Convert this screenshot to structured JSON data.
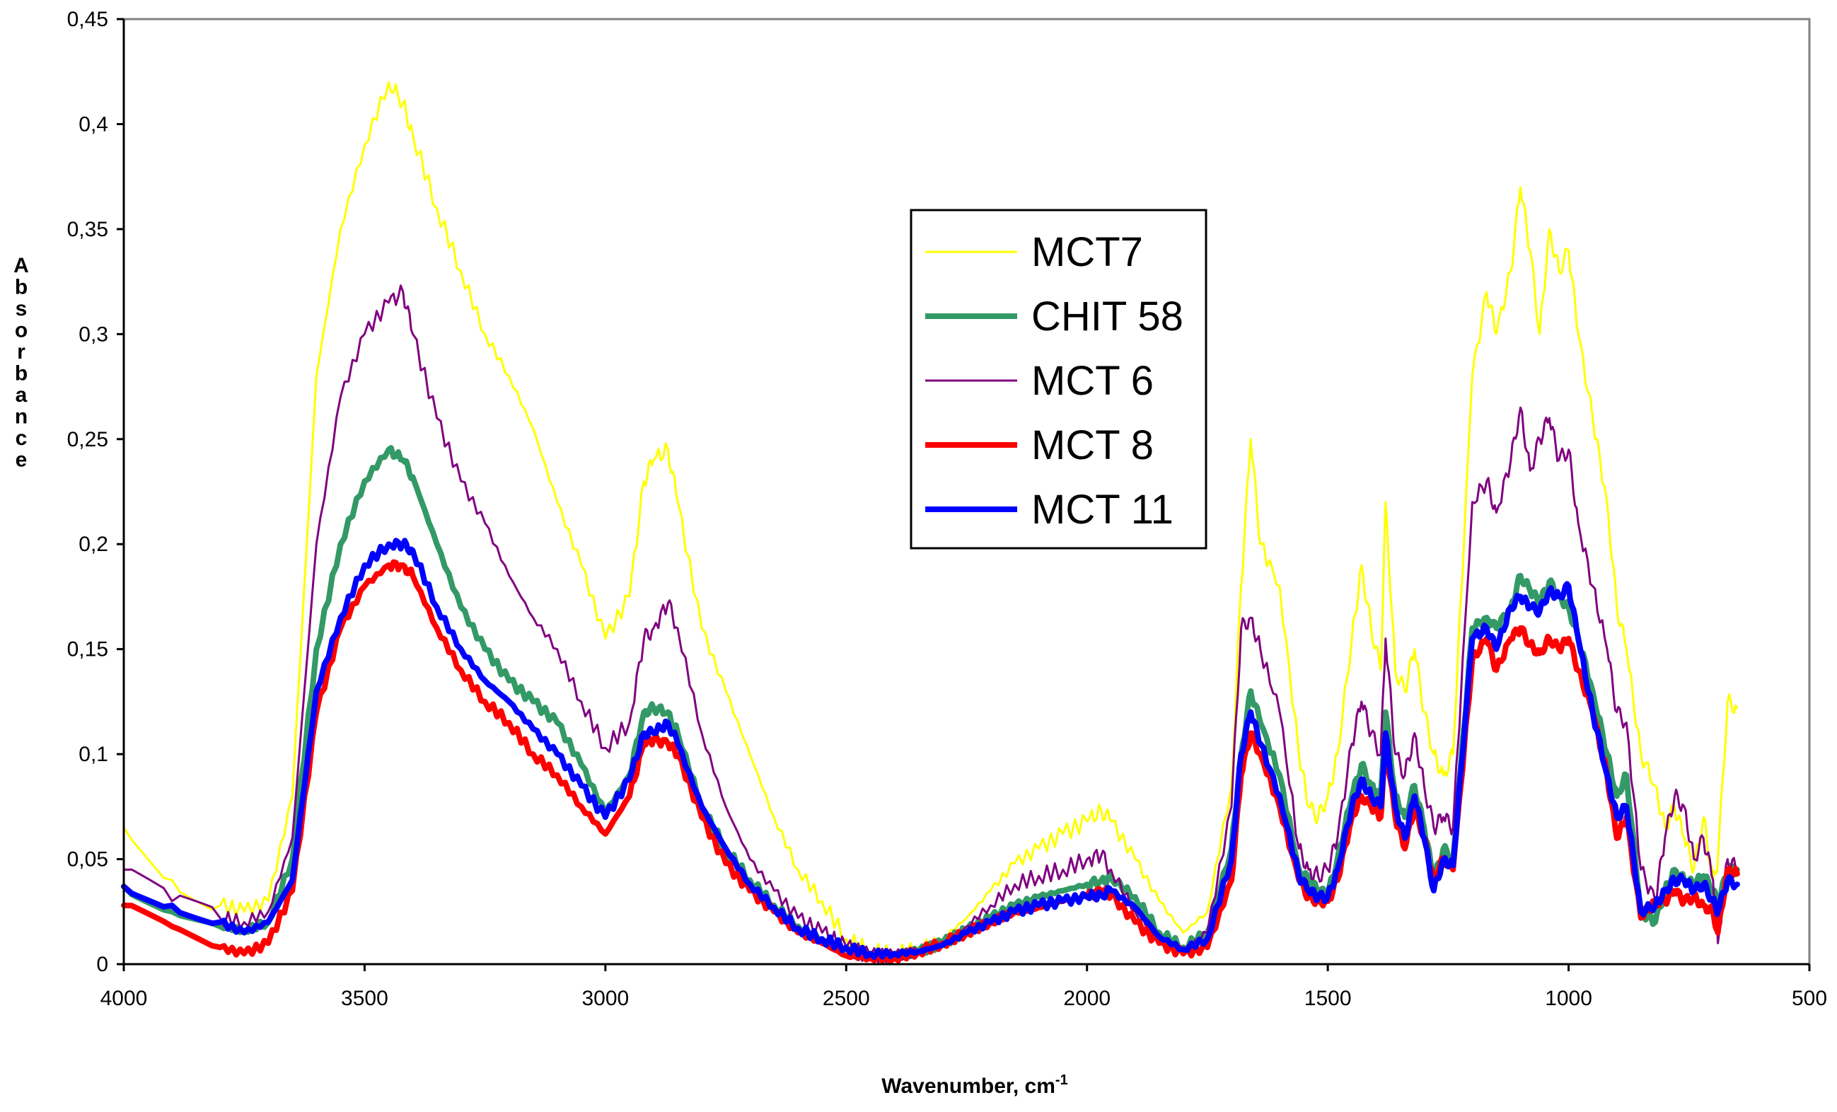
{
  "chart_data": {
    "type": "line",
    "title": "",
    "xlabel": "Wavenumber, cm",
    "xlabel_sup": "-1",
    "ylabel": "Absorbance",
    "xlim": [
      4000,
      500
    ],
    "ylim": [
      0,
      0.45
    ],
    "x_ticks": [
      4000,
      3500,
      3000,
      2500,
      2000,
      1500,
      1000,
      500
    ],
    "x_tick_labels": [
      "4000",
      "3500",
      "3000",
      "2500",
      "2000",
      "1500",
      "1000",
      "500"
    ],
    "y_ticks": [
      0,
      0.05,
      0.1,
      0.15,
      0.2,
      0.25,
      0.3,
      0.35,
      0.4,
      0.45
    ],
    "y_tick_labels": [
      "0",
      "0,05",
      "0,1",
      "0,15",
      "0,2",
      "0,25",
      "0,3",
      "0,35",
      "0,4",
      "0,45"
    ],
    "grid": false,
    "legend_position": "center",
    "series": [
      {
        "name": "MCT7",
        "color": "#FFFF00",
        "stroke": "thin",
        "x": [
          4000,
          3900,
          3800,
          3750,
          3700,
          3650,
          3600,
          3550,
          3500,
          3450,
          3420,
          3400,
          3350,
          3300,
          3250,
          3200,
          3150,
          3100,
          3050,
          3000,
          2950,
          2920,
          2900,
          2870,
          2850,
          2800,
          2750,
          2700,
          2650,
          2600,
          2550,
          2500,
          2450,
          2400,
          2350,
          2300,
          2250,
          2200,
          2150,
          2100,
          2050,
          2000,
          1970,
          1950,
          1900,
          1850,
          1800,
          1750,
          1700,
          1680,
          1660,
          1640,
          1600,
          1560,
          1540,
          1520,
          1500,
          1480,
          1450,
          1430,
          1410,
          1390,
          1380,
          1360,
          1340,
          1320,
          1300,
          1280,
          1260,
          1240,
          1200,
          1170,
          1150,
          1120,
          1100,
          1080,
          1060,
          1040,
          1020,
          1000,
          980,
          950,
          920,
          900,
          880,
          850,
          820,
          800,
          780,
          760,
          740,
          720,
          700,
          690,
          670,
          650
        ],
        "values": [
          0.065,
          0.04,
          0.028,
          0.025,
          0.03,
          0.08,
          0.28,
          0.35,
          0.39,
          0.42,
          0.41,
          0.395,
          0.36,
          0.33,
          0.3,
          0.28,
          0.255,
          0.22,
          0.19,
          0.155,
          0.175,
          0.23,
          0.24,
          0.245,
          0.22,
          0.16,
          0.13,
          0.1,
          0.07,
          0.045,
          0.03,
          0.012,
          0.006,
          0.005,
          0.008,
          0.012,
          0.022,
          0.035,
          0.048,
          0.055,
          0.062,
          0.068,
          0.073,
          0.068,
          0.05,
          0.03,
          0.015,
          0.025,
          0.085,
          0.18,
          0.25,
          0.2,
          0.18,
          0.1,
          0.075,
          0.07,
          0.08,
          0.1,
          0.155,
          0.19,
          0.16,
          0.14,
          0.22,
          0.14,
          0.13,
          0.15,
          0.12,
          0.1,
          0.09,
          0.1,
          0.28,
          0.32,
          0.3,
          0.33,
          0.37,
          0.34,
          0.3,
          0.35,
          0.33,
          0.34,
          0.3,
          0.26,
          0.22,
          0.17,
          0.15,
          0.1,
          0.085,
          0.065,
          0.075,
          0.06,
          0.045,
          0.07,
          0.04,
          0.05,
          0.125,
          0.122
        ]
      },
      {
        "name": "CHIT 58",
        "color": "#339966",
        "stroke": "thick",
        "x": [
          4000,
          3900,
          3800,
          3750,
          3700,
          3650,
          3600,
          3550,
          3500,
          3450,
          3420,
          3400,
          3350,
          3300,
          3250,
          3200,
          3150,
          3100,
          3050,
          3000,
          2950,
          2920,
          2900,
          2870,
          2850,
          2800,
          2750,
          2700,
          2650,
          2600,
          2550,
          2500,
          2450,
          2400,
          2350,
          2300,
          2250,
          2200,
          2150,
          2100,
          2050,
          2000,
          1970,
          1950,
          1900,
          1850,
          1800,
          1750,
          1700,
          1680,
          1660,
          1640,
          1600,
          1560,
          1540,
          1520,
          1500,
          1480,
          1450,
          1430,
          1410,
          1390,
          1380,
          1360,
          1340,
          1320,
          1300,
          1280,
          1260,
          1240,
          1200,
          1170,
          1150,
          1120,
          1100,
          1080,
          1060,
          1040,
          1020,
          1000,
          980,
          950,
          920,
          900,
          880,
          850,
          820,
          800,
          780,
          760,
          740,
          720,
          700,
          690,
          670,
          650
        ],
        "values": [
          0.037,
          0.025,
          0.018,
          0.016,
          0.02,
          0.05,
          0.15,
          0.2,
          0.23,
          0.245,
          0.24,
          0.232,
          0.2,
          0.17,
          0.15,
          0.135,
          0.125,
          0.115,
          0.095,
          0.072,
          0.09,
          0.12,
          0.122,
          0.12,
          0.11,
          0.075,
          0.055,
          0.04,
          0.028,
          0.018,
          0.012,
          0.007,
          0.004,
          0.004,
          0.006,
          0.01,
          0.016,
          0.022,
          0.028,
          0.032,
          0.035,
          0.038,
          0.04,
          0.041,
          0.032,
          0.015,
          0.008,
          0.015,
          0.055,
          0.1,
          0.13,
          0.115,
          0.09,
          0.045,
          0.04,
          0.035,
          0.033,
          0.05,
          0.08,
          0.095,
          0.085,
          0.08,
          0.12,
          0.08,
          0.07,
          0.085,
          0.065,
          0.04,
          0.055,
          0.05,
          0.16,
          0.165,
          0.16,
          0.17,
          0.185,
          0.178,
          0.172,
          0.182,
          0.175,
          0.17,
          0.155,
          0.13,
          0.1,
          0.08,
          0.09,
          0.025,
          0.02,
          0.035,
          0.045,
          0.04,
          0.038,
          0.042,
          0.035,
          0.028,
          0.045,
          0.045
        ]
      },
      {
        "name": "MCT 6",
        "color": "#800080",
        "stroke": "thin",
        "x": [
          4000,
          3900,
          3800,
          3750,
          3700,
          3650,
          3600,
          3550,
          3500,
          3450,
          3420,
          3400,
          3350,
          3300,
          3250,
          3200,
          3150,
          3100,
          3050,
          3000,
          2950,
          2920,
          2900,
          2870,
          2850,
          2800,
          2750,
          2700,
          2650,
          2600,
          2550,
          2500,
          2450,
          2400,
          2350,
          2300,
          2250,
          2200,
          2150,
          2100,
          2050,
          2000,
          1970,
          1950,
          1900,
          1850,
          1800,
          1750,
          1700,
          1680,
          1660,
          1640,
          1600,
          1560,
          1540,
          1520,
          1500,
          1480,
          1450,
          1430,
          1410,
          1390,
          1380,
          1360,
          1340,
          1320,
          1300,
          1280,
          1260,
          1240,
          1200,
          1170,
          1150,
          1120,
          1100,
          1080,
          1060,
          1040,
          1020,
          1000,
          980,
          950,
          920,
          900,
          880,
          850,
          820,
          800,
          780,
          760,
          740,
          720,
          700,
          690,
          670,
          650
        ],
        "values": [
          0.045,
          0.03,
          0.022,
          0.02,
          0.025,
          0.06,
          0.2,
          0.27,
          0.3,
          0.315,
          0.32,
          0.3,
          0.26,
          0.23,
          0.21,
          0.185,
          0.165,
          0.15,
          0.125,
          0.103,
          0.115,
          0.155,
          0.16,
          0.172,
          0.16,
          0.11,
          0.075,
          0.05,
          0.035,
          0.022,
          0.015,
          0.008,
          0.004,
          0.004,
          0.006,
          0.01,
          0.018,
          0.028,
          0.038,
          0.042,
          0.045,
          0.05,
          0.052,
          0.045,
          0.025,
          0.01,
          0.005,
          0.015,
          0.075,
          0.16,
          0.165,
          0.15,
          0.12,
          0.055,
          0.045,
          0.042,
          0.045,
          0.06,
          0.105,
          0.125,
          0.11,
          0.1,
          0.155,
          0.1,
          0.09,
          0.11,
          0.085,
          0.065,
          0.07,
          0.065,
          0.22,
          0.23,
          0.215,
          0.24,
          0.265,
          0.235,
          0.25,
          0.26,
          0.24,
          0.245,
          0.21,
          0.18,
          0.15,
          0.12,
          0.115,
          0.045,
          0.03,
          0.06,
          0.08,
          0.075,
          0.05,
          0.06,
          0.04,
          0.01,
          0.05,
          0.045
        ]
      },
      {
        "name": "MCT 8",
        "color": "#FF0000",
        "stroke": "thick",
        "x": [
          4000,
          3900,
          3800,
          3750,
          3700,
          3650,
          3600,
          3550,
          3500,
          3450,
          3420,
          3400,
          3350,
          3300,
          3250,
          3200,
          3150,
          3100,
          3050,
          3000,
          2950,
          2920,
          2900,
          2870,
          2850,
          2800,
          2750,
          2700,
          2650,
          2600,
          2550,
          2500,
          2450,
          2400,
          2350,
          2300,
          2250,
          2200,
          2150,
          2100,
          2050,
          2000,
          1970,
          1950,
          1900,
          1850,
          1800,
          1750,
          1700,
          1680,
          1660,
          1640,
          1600,
          1560,
          1540,
          1520,
          1500,
          1480,
          1450,
          1430,
          1410,
          1390,
          1380,
          1360,
          1340,
          1320,
          1300,
          1280,
          1260,
          1240,
          1200,
          1170,
          1150,
          1120,
          1100,
          1080,
          1060,
          1040,
          1020,
          1000,
          980,
          950,
          920,
          900,
          880,
          850,
          820,
          800,
          780,
          760,
          740,
          720,
          700,
          690,
          670,
          650
        ],
        "values": [
          0.028,
          0.018,
          0.008,
          0.005,
          0.01,
          0.035,
          0.12,
          0.16,
          0.18,
          0.19,
          0.19,
          0.185,
          0.16,
          0.14,
          0.125,
          0.115,
          0.1,
          0.09,
          0.075,
          0.062,
          0.08,
          0.105,
          0.107,
          0.105,
          0.1,
          0.07,
          0.048,
          0.035,
          0.025,
          0.015,
          0.01,
          0.004,
          0.003,
          0.003,
          0.006,
          0.01,
          0.015,
          0.02,
          0.025,
          0.027,
          0.03,
          0.032,
          0.035,
          0.033,
          0.02,
          0.01,
          0.005,
          0.008,
          0.04,
          0.09,
          0.11,
          0.1,
          0.075,
          0.04,
          0.032,
          0.03,
          0.03,
          0.04,
          0.07,
          0.08,
          0.075,
          0.07,
          0.105,
          0.07,
          0.055,
          0.075,
          0.06,
          0.04,
          0.05,
          0.045,
          0.145,
          0.155,
          0.14,
          0.155,
          0.16,
          0.152,
          0.148,
          0.155,
          0.15,
          0.155,
          0.14,
          0.12,
          0.09,
          0.06,
          0.07,
          0.022,
          0.03,
          0.03,
          0.035,
          0.03,
          0.032,
          0.028,
          0.025,
          0.015,
          0.045,
          0.043
        ]
      },
      {
        "name": "MCT 11",
        "color": "#0000FF",
        "stroke": "thick",
        "x": [
          4000,
          3900,
          3800,
          3750,
          3700,
          3650,
          3600,
          3550,
          3500,
          3450,
          3420,
          3400,
          3350,
          3300,
          3250,
          3200,
          3150,
          3100,
          3050,
          3000,
          2950,
          2920,
          2900,
          2870,
          2850,
          2800,
          2750,
          2700,
          2650,
          2600,
          2550,
          2500,
          2450,
          2400,
          2350,
          2300,
          2250,
          2200,
          2150,
          2100,
          2050,
          2000,
          1970,
          1950,
          1900,
          1850,
          1800,
          1750,
          1700,
          1680,
          1660,
          1640,
          1600,
          1560,
          1540,
          1520,
          1500,
          1480,
          1450,
          1430,
          1410,
          1390,
          1380,
          1360,
          1340,
          1320,
          1300,
          1280,
          1260,
          1240,
          1200,
          1170,
          1150,
          1120,
          1100,
          1080,
          1060,
          1040,
          1020,
          1000,
          980,
          950,
          920,
          900,
          880,
          850,
          820,
          800,
          780,
          760,
          740,
          720,
          700,
          690,
          670,
          650
        ],
        "values": [
          0.037,
          0.028,
          0.02,
          0.015,
          0.02,
          0.04,
          0.13,
          0.165,
          0.19,
          0.2,
          0.2,
          0.197,
          0.17,
          0.15,
          0.135,
          0.125,
          0.112,
          0.1,
          0.085,
          0.07,
          0.088,
          0.11,
          0.11,
          0.115,
          0.105,
          0.075,
          0.055,
          0.038,
          0.027,
          0.017,
          0.012,
          0.008,
          0.005,
          0.005,
          0.006,
          0.009,
          0.015,
          0.02,
          0.025,
          0.028,
          0.03,
          0.032,
          0.033,
          0.035,
          0.027,
          0.013,
          0.007,
          0.012,
          0.05,
          0.1,
          0.12,
          0.105,
          0.08,
          0.042,
          0.035,
          0.032,
          0.032,
          0.045,
          0.075,
          0.088,
          0.08,
          0.075,
          0.11,
          0.075,
          0.06,
          0.08,
          0.06,
          0.035,
          0.05,
          0.047,
          0.155,
          0.16,
          0.15,
          0.17,
          0.175,
          0.17,
          0.168,
          0.178,
          0.175,
          0.18,
          0.155,
          0.12,
          0.09,
          0.07,
          0.075,
          0.025,
          0.028,
          0.035,
          0.04,
          0.04,
          0.035,
          0.038,
          0.03,
          0.025,
          0.04,
          0.038
        ]
      }
    ]
  }
}
